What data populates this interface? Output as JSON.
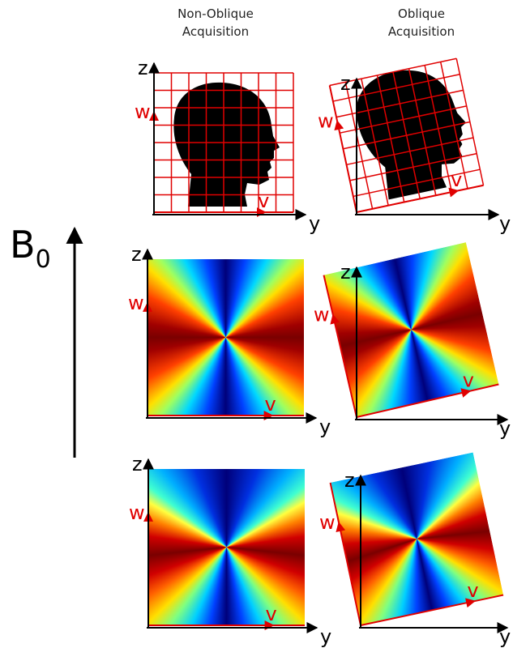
{
  "columns": [
    {
      "title_lines": [
        "Non-Oblique",
        "Acquisition"
      ]
    },
    {
      "title_lines": [
        "Oblique",
        "Acquisition"
      ]
    }
  ],
  "field": {
    "label": "B",
    "subscript": "0"
  },
  "axis_labels": {
    "z": "z",
    "y": "y",
    "w": "w",
    "v": "v"
  }
}
